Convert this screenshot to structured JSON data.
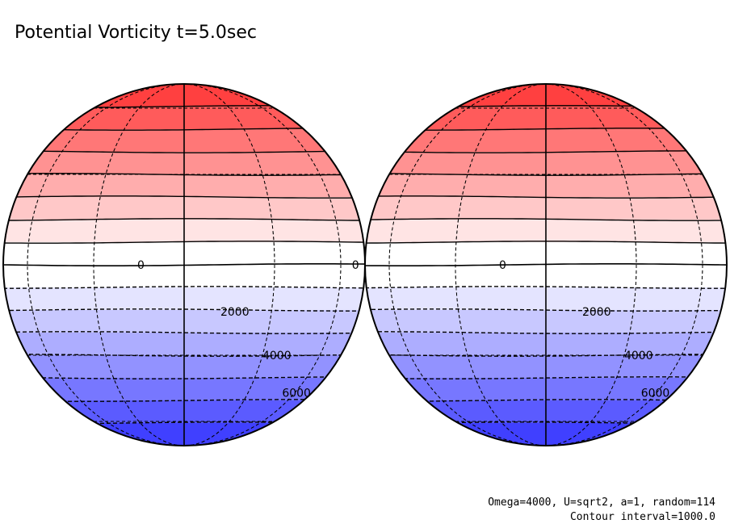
{
  "title": "Potential Vorticity t=5.0sec",
  "footer": {
    "params": "Omega=4000, U=sqrt2, a=1, random=114",
    "contour_interval": "Contour interval=1000.0"
  },
  "colors": {
    "positive_max": "#ff4040",
    "zero": "#ffffff",
    "negative_max": "#4040ff",
    "line": "#000000"
  },
  "chart_data": {
    "type": "contour",
    "projection": "orthographic (two hemispheres side by side)",
    "field": "potential vorticity",
    "contour_interval": 1000,
    "value_range": [
      -8000,
      8000
    ],
    "globes": [
      {
        "name": "left-hemisphere",
        "labels": [
          {
            "text": "0",
            "lat": 0,
            "lon": -15
          },
          {
            "text": "0",
            "lat": 0,
            "lon": 68
          },
          {
            "text": "2000",
            "lat": -15,
            "lon": 12
          },
          {
            "text": "4000",
            "lat": -30,
            "lon": 30
          },
          {
            "text": "6000",
            "lat": -45,
            "lon": 50
          }
        ]
      },
      {
        "name": "right-hemisphere",
        "labels": [
          {
            "text": "0",
            "lat": 0,
            "lon": -15
          },
          {
            "text": "2000",
            "lat": -15,
            "lon": 12
          },
          {
            "text": "4000",
            "lat": -30,
            "lon": 30
          },
          {
            "text": "6000",
            "lat": -45,
            "lon": 48
          }
        ]
      }
    ]
  }
}
